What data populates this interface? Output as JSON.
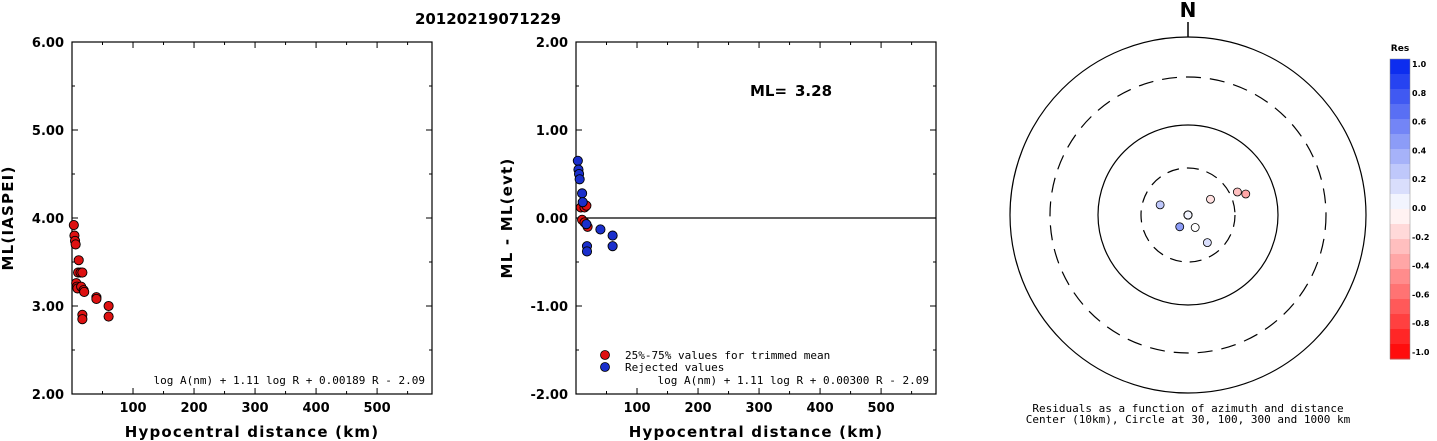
{
  "page_title": "20120219071229",
  "chart_data": [
    {
      "type": "scatter",
      "xlabel": "Hypocentral distance (km)",
      "ylabel": "ML(IASPEI)",
      "xlim": [
        0,
        590
      ],
      "ylim": [
        2.0,
        6.0
      ],
      "xticks": [
        "100",
        "200",
        "300",
        "400",
        "500"
      ],
      "yticks": [
        "2.00",
        "3.00",
        "4.00",
        "5.00",
        "6.00"
      ],
      "formula": "log A(nm) + 1.11 log R + 0.00189 R - 2.09",
      "series": [
        {
          "color": "#dd1111",
          "points": [
            [
              3,
              3.92
            ],
            [
              4,
              3.8
            ],
            [
              5,
              3.74
            ],
            [
              6,
              3.7
            ],
            [
              7,
              3.26
            ],
            [
              8,
              3.22
            ],
            [
              9,
              3.2
            ],
            [
              10,
              3.38
            ],
            [
              11,
              3.52
            ],
            [
              14,
              3.38
            ],
            [
              15,
              3.22
            ],
            [
              17,
              2.9
            ],
            [
              17,
              2.85
            ],
            [
              17,
              3.38
            ],
            [
              19,
              3.18
            ],
            [
              20,
              3.16
            ],
            [
              40,
              3.1
            ],
            [
              40,
              3.08
            ],
            [
              60,
              3.0
            ],
            [
              60,
              2.88
            ]
          ]
        }
      ]
    },
    {
      "type": "scatter",
      "xlabel": "Hypocentral distance (km)",
      "ylabel": "ML - ML(evt)",
      "xlim": [
        0,
        590
      ],
      "ylim": [
        -2.0,
        2.0
      ],
      "xticks": [
        "100",
        "200",
        "300",
        "400",
        "500"
      ],
      "yticks": [
        "-2.00",
        "-1.00",
        "0.00",
        "1.00",
        "2.00"
      ],
      "reference_line": 0,
      "annotation_label": "ML=",
      "annotation_value": "3.28",
      "formula": "log A(nm) + 1.11 log R + 0.00300 R - 2.09",
      "legend": [
        {
          "label": "25%-75% values for trimmed mean",
          "color": "#dd1111"
        },
        {
          "label": "Rejected values",
          "color": "#1a2fcc"
        }
      ],
      "series": [
        {
          "name": "25%-75% values for trimmed mean",
          "color": "#dd1111",
          "points": [
            [
              8,
              0.12
            ],
            [
              10,
              -0.02
            ],
            [
              14,
              0.12
            ],
            [
              14,
              -0.05
            ],
            [
              17,
              0.14
            ],
            [
              19,
              -0.1
            ]
          ]
        },
        {
          "name": "Rejected values",
          "color": "#1a2fcc",
          "points": [
            [
              3,
              0.65
            ],
            [
              4,
              0.55
            ],
            [
              5,
              0.5
            ],
            [
              6,
              0.44
            ],
            [
              10,
              0.28
            ],
            [
              11,
              0.18
            ],
            [
              17,
              -0.07
            ],
            [
              18,
              -0.32
            ],
            [
              18,
              -0.38
            ],
            [
              40,
              -0.13
            ],
            [
              60,
              -0.2
            ],
            [
              60,
              -0.32
            ]
          ]
        }
      ]
    },
    {
      "type": "scatter",
      "subtype": "polar",
      "north_label": "N",
      "caption_line1": "Residuals as a function of azimuth and distance",
      "caption_line2": "Center (10km), Circle at 30, 100, 300 and 1000 km",
      "rings_km": [
        30,
        100,
        300,
        1000
      ],
      "colorbar": {
        "title": "Res",
        "range": [
          -1.0,
          1.0
        ],
        "labels": [
          "1.0",
          "0.8",
          "0.6",
          "0.4",
          "0.2",
          "0.0",
          "-0.2",
          "-0.4",
          "-0.6",
          "-0.8",
          "-1.0"
        ],
        "positive_color": "#0022ee",
        "negative_color": "#ff0000"
      },
      "points": [
        {
          "azimuth_deg": 290,
          "distance_km": 20,
          "residual": 0.25
        },
        {
          "azimuth_deg": 300,
          "distance_km": 10,
          "residual": -0.05
        },
        {
          "azimuth_deg": 240,
          "distance_km": 9,
          "residual": 0.1
        },
        {
          "azimuth_deg": 215,
          "distance_km": 14,
          "residual": 0.45
        },
        {
          "azimuth_deg": 325,
          "distance_km": 6,
          "residual": 0.1
        },
        {
          "azimuth_deg": 35,
          "distance_km": 7,
          "residual": 0.2
        },
        {
          "azimuth_deg": 15,
          "distance_km": 8,
          "residual": -0.1
        },
        {
          "azimuth_deg": 70,
          "distance_km": 45,
          "residual": -0.35
        },
        {
          "azimuth_deg": 65,
          "distance_km": 37,
          "residual": -0.25
        },
        {
          "azimuth_deg": 55,
          "distance_km": 19,
          "residual": -0.12
        },
        {
          "azimuth_deg": 90,
          "distance_km": 5,
          "residual": 0.3
        },
        {
          "azimuth_deg": 160,
          "distance_km": 6,
          "residual": 0.05
        },
        {
          "azimuth_deg": 145,
          "distance_km": 22,
          "residual": 0.15
        },
        {
          "azimuth_deg": 150,
          "distance_km": 14,
          "residual": 0.0
        }
      ]
    }
  ]
}
